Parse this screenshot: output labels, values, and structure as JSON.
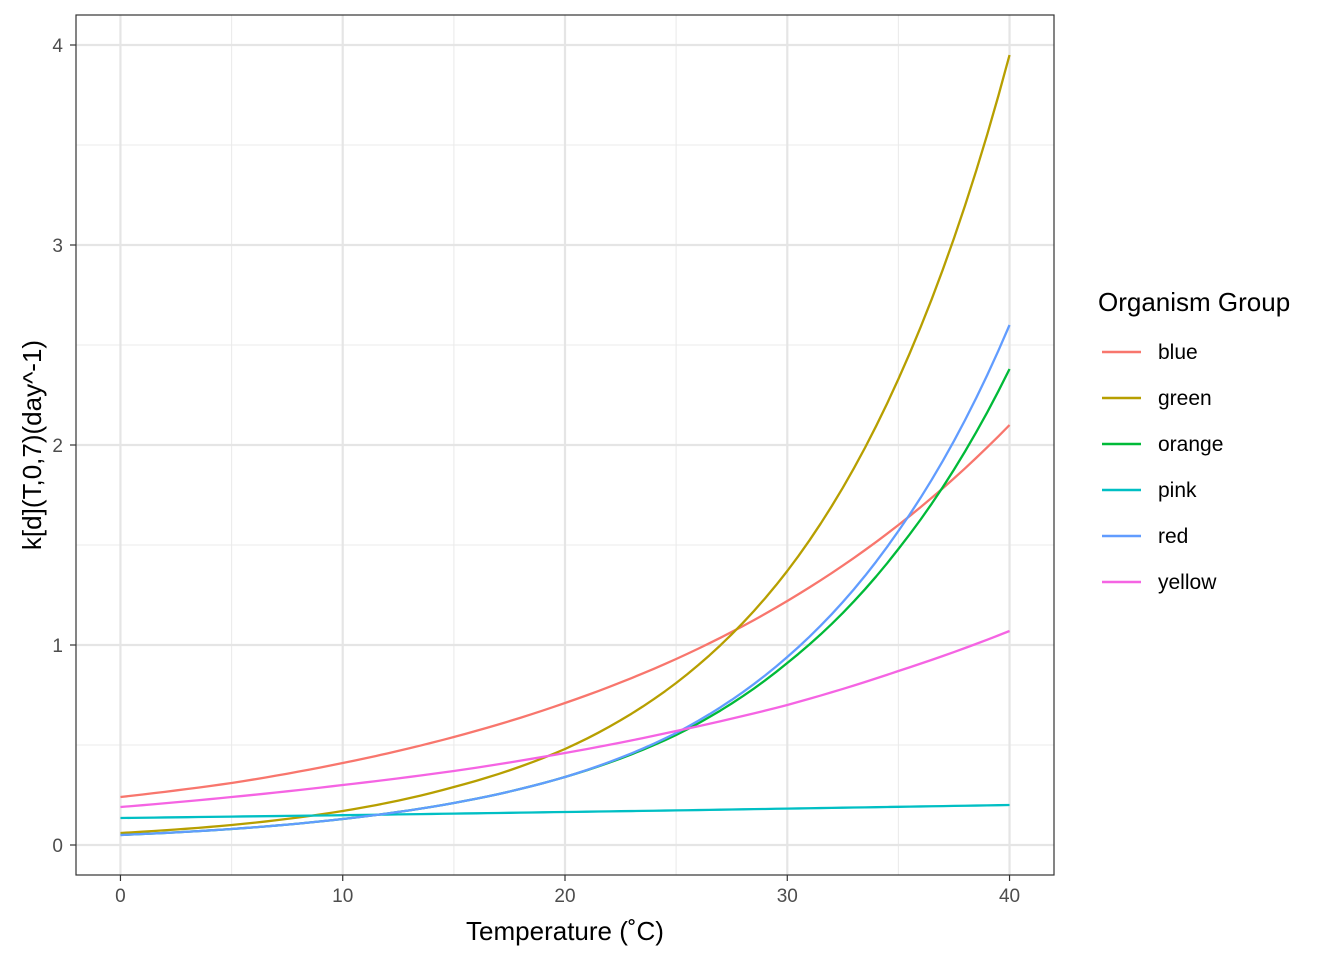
{
  "chart_data": {
    "type": "line",
    "xlabel": "Temperature (˚C)",
    "ylabel": "k[d](T,0,7)(day^-1)",
    "xlim": [
      -2,
      42
    ],
    "ylim": [
      -0.15,
      4.15
    ],
    "x_ticks": [
      0,
      10,
      20,
      30,
      40
    ],
    "y_ticks": [
      0,
      1,
      2,
      3,
      4
    ],
    "x_tick_labels": [
      "0",
      "10",
      "20",
      "30",
      "40"
    ],
    "y_tick_labels": [
      "0",
      "1",
      "2",
      "3",
      "4"
    ],
    "grid": true,
    "legend": {
      "title": "Organism Group",
      "position": "right"
    },
    "x": [
      0,
      5,
      10,
      15,
      20,
      25,
      30,
      35,
      40
    ],
    "series": [
      {
        "name": "blue",
        "color": "#F8766D",
        "values": [
          0.24,
          0.31,
          0.41,
          0.54,
          0.71,
          0.93,
          1.22,
          1.6,
          2.1
        ]
      },
      {
        "name": "green",
        "color": "#B79F00",
        "values": [
          0.06,
          0.1,
          0.17,
          0.29,
          0.48,
          0.81,
          1.37,
          2.33,
          3.95
        ]
      },
      {
        "name": "orange",
        "color": "#00BA38",
        "values": [
          0.05,
          0.08,
          0.13,
          0.21,
          0.34,
          0.55,
          0.91,
          1.48,
          2.38
        ]
      },
      {
        "name": "pink",
        "color": "#00BFC4",
        "values": [
          0.135,
          0.142,
          0.149,
          0.157,
          0.165,
          0.173,
          0.182,
          0.191,
          0.2
        ]
      },
      {
        "name": "red",
        "color": "#619CFF",
        "values": [
          0.05,
          0.08,
          0.13,
          0.21,
          0.34,
          0.56,
          0.94,
          1.57,
          2.6
        ]
      },
      {
        "name": "yellow",
        "color": "#F564E3",
        "values": [
          0.19,
          0.24,
          0.3,
          0.37,
          0.46,
          0.57,
          0.7,
          0.87,
          1.07
        ]
      }
    ]
  }
}
